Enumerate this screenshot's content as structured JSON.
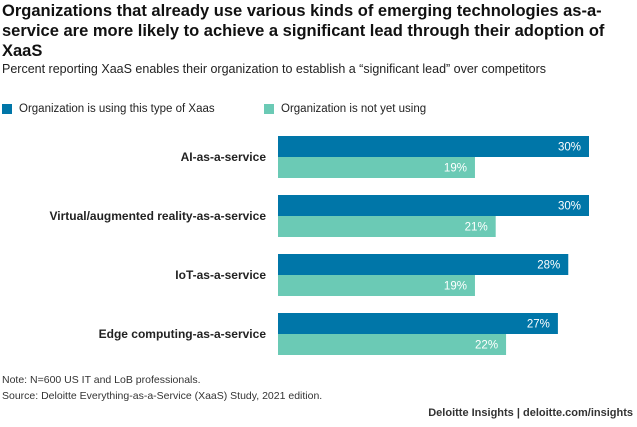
{
  "title": "Organizations that already use various kinds of emerging technologies as-a-service are more likely to achieve a significant lead through their adoption of XaaS",
  "subtitle": "Percent reporting XaaS enables their organization to establish a “significant lead” over competitors",
  "note": "Note: N=600 US IT and LoB professionals.",
  "source": "Source: Deloitte Everything-as-a-Service (XaaS) Study, 2021 edition.",
  "brand": "Deloitte Insights | deloitte.com/insights",
  "colors": {
    "series_a": "#0076a8",
    "series_b": "#6bcab5"
  },
  "chart_data": {
    "type": "bar",
    "orientation": "horizontal",
    "categories": [
      "AI-as-a-service",
      "Virtual/augmented reality-as-a-service",
      "IoT-as-a-service",
      "Edge computing-as-a-service"
    ],
    "series": [
      {
        "name": "Organization is using this type of Xaas",
        "values": [
          30,
          30,
          28,
          27
        ],
        "labels": [
          "30%",
          "30%",
          "28%",
          "27%"
        ]
      },
      {
        "name": "Organization is not yet using",
        "values": [
          19,
          21,
          19,
          22
        ],
        "labels": [
          "19%",
          "21%",
          "19%",
          "22%"
        ]
      }
    ],
    "xlim": [
      0,
      30
    ],
    "legend": "top-left",
    "grid": false
  }
}
